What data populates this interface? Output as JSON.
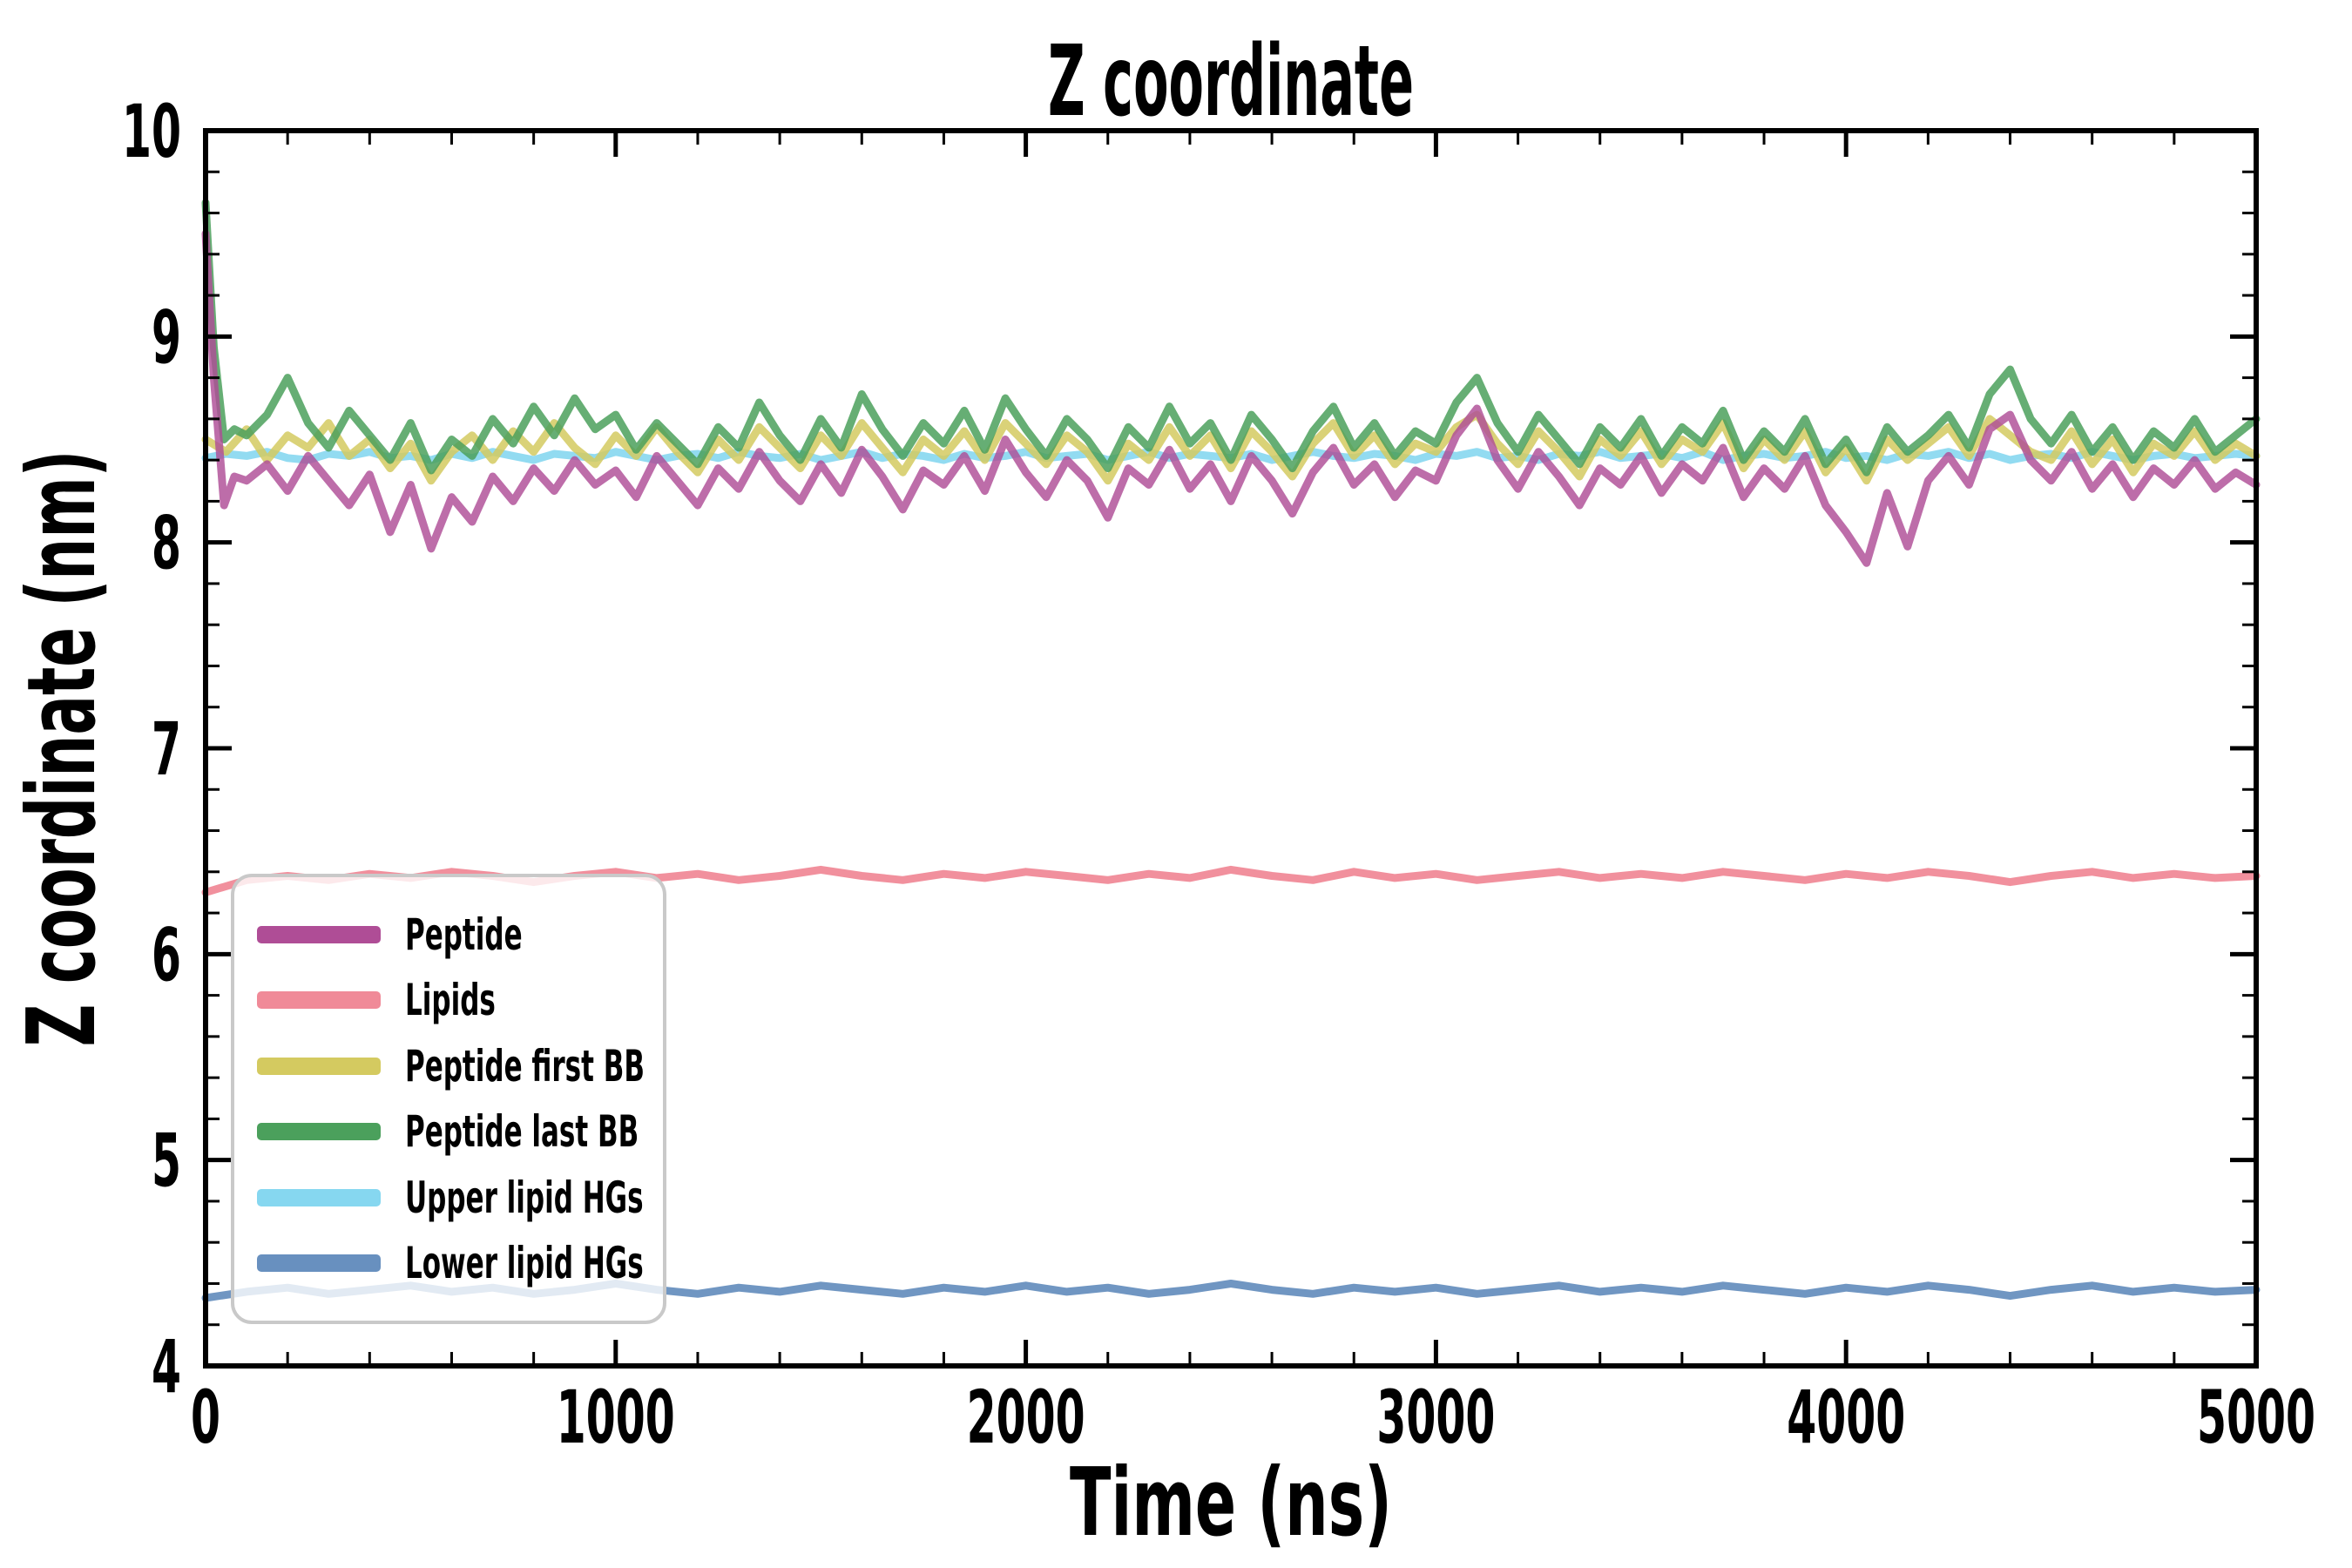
{
  "title": "Z coordinate",
  "legend": {
    "items": [
      {
        "label": "Peptide",
        "color": "#af4d96"
      },
      {
        "label": "Lipids",
        "color": "#f08a98"
      },
      {
        "label": "Peptide first BB",
        "color": "#d4ca60"
      },
      {
        "label": "Peptide last BB",
        "color": "#4ba05c"
      },
      {
        "label": "Upper lipid HGs",
        "color": "#86d7f0"
      },
      {
        "label": "Lower lipid HGs",
        "color": "#6890bf"
      }
    ]
  },
  "chart_data": {
    "type": "line",
    "title": "Z coordinate",
    "xlabel": "Time (ns)",
    "ylabel": "Z coordinate (nm)",
    "xlim": [
      0,
      5000
    ],
    "ylim": [
      4,
      10
    ],
    "grid": false,
    "legend_position": "lower left",
    "xticks_major": [
      0,
      1000,
      2000,
      3000,
      4000,
      5000
    ],
    "xtick_labels": [
      "0",
      "1000",
      "2000",
      "3000",
      "4000",
      "5000"
    ],
    "x_minor_step": 200,
    "yticks_major": [
      4,
      5,
      6,
      7,
      8,
      9,
      10
    ],
    "ytick_labels": [
      "4",
      "5",
      "6",
      "7",
      "8",
      "9",
      "10"
    ],
    "y_minor_step": 0.2,
    "draw_order": [
      4,
      2,
      3,
      0,
      1,
      5
    ],
    "series": [
      {
        "name": "Peptide",
        "color": "#af4d96",
        "opacity": 0.82,
        "linewidth": 9,
        "t_start": 100,
        "dt": 50,
        "lead": [
          [
            0,
            9.5
          ],
          [
            20,
            8.8
          ],
          [
            45,
            8.18
          ],
          [
            70,
            8.32
          ]
        ],
        "values": [
          8.3,
          8.38,
          8.25,
          8.42,
          8.3,
          8.18,
          8.33,
          8.05,
          8.28,
          7.97,
          8.22,
          8.1,
          8.32,
          8.2,
          8.36,
          8.25,
          8.4,
          8.28,
          8.35,
          8.22,
          8.42,
          8.3,
          8.18,
          8.36,
          8.26,
          8.44,
          8.3,
          8.2,
          8.38,
          8.24,
          8.45,
          8.32,
          8.16,
          8.35,
          8.28,
          8.42,
          8.25,
          8.5,
          8.34,
          8.22,
          8.4,
          8.3,
          8.12,
          8.36,
          8.28,
          8.45,
          8.26,
          8.38,
          8.2,
          8.42,
          8.3,
          8.14,
          8.34,
          8.46,
          8.28,
          8.38,
          8.22,
          8.35,
          8.3,
          8.52,
          8.65,
          8.4,
          8.26,
          8.44,
          8.32,
          8.18,
          8.36,
          8.28,
          8.42,
          8.24,
          8.38,
          8.3,
          8.46,
          8.22,
          8.36,
          8.26,
          8.42,
          8.18,
          8.05,
          7.9,
          8.24,
          7.98,
          8.3,
          8.42,
          8.28,
          8.55,
          8.62,
          8.4,
          8.3,
          8.44,
          8.26,
          8.38,
          8.22,
          8.36,
          8.28,
          8.4,
          8.26,
          8.34,
          8.28
        ]
      },
      {
        "name": "Lipids",
        "color": "#f08a98",
        "opacity": 0.95,
        "linewidth": 9,
        "t_start": 0,
        "dt": 100,
        "values": [
          6.3,
          6.36,
          6.38,
          6.36,
          6.39,
          6.37,
          6.4,
          6.38,
          6.35,
          6.38,
          6.4,
          6.37,
          6.39,
          6.36,
          6.38,
          6.41,
          6.38,
          6.36,
          6.39,
          6.37,
          6.4,
          6.38,
          6.36,
          6.39,
          6.37,
          6.41,
          6.38,
          6.36,
          6.4,
          6.37,
          6.39,
          6.36,
          6.38,
          6.4,
          6.37,
          6.39,
          6.37,
          6.4,
          6.38,
          6.36,
          6.39,
          6.37,
          6.4,
          6.38,
          6.35,
          6.38,
          6.4,
          6.37,
          6.39,
          6.37,
          6.38
        ]
      },
      {
        "name": "Peptide first BB",
        "color": "#d4ca60",
        "opacity": 0.85,
        "linewidth": 9,
        "t_start": 0,
        "dt": 50,
        "values": [
          8.5,
          8.44,
          8.55,
          8.4,
          8.52,
          8.46,
          8.58,
          8.42,
          8.5,
          8.36,
          8.48,
          8.3,
          8.44,
          8.52,
          8.4,
          8.54,
          8.44,
          8.58,
          8.46,
          8.38,
          8.52,
          8.42,
          8.56,
          8.44,
          8.34,
          8.5,
          8.4,
          8.56,
          8.46,
          8.36,
          8.52,
          8.42,
          8.58,
          8.46,
          8.34,
          8.5,
          8.42,
          8.54,
          8.4,
          8.58,
          8.48,
          8.38,
          8.52,
          8.44,
          8.3,
          8.48,
          8.4,
          8.56,
          8.42,
          8.52,
          8.36,
          8.54,
          8.44,
          8.32,
          8.48,
          8.58,
          8.42,
          8.52,
          8.38,
          8.48,
          8.44,
          8.56,
          8.62,
          8.48,
          8.38,
          8.54,
          8.44,
          8.32,
          8.5,
          8.42,
          8.54,
          8.38,
          8.5,
          8.44,
          8.58,
          8.36,
          8.5,
          8.4,
          8.54,
          8.34,
          8.46,
          8.3,
          8.5,
          8.4,
          8.48,
          8.56,
          8.42,
          8.6,
          8.52,
          8.44,
          8.4,
          8.54,
          8.38,
          8.5,
          8.34,
          8.48,
          8.42,
          8.54,
          8.4,
          8.48,
          8.42
        ]
      },
      {
        "name": "Peptide last BB",
        "color": "#4ba05c",
        "opacity": 0.85,
        "linewidth": 9,
        "t_start": 100,
        "dt": 50,
        "lead": [
          [
            0,
            9.65
          ],
          [
            20,
            8.95
          ],
          [
            45,
            8.5
          ],
          [
            70,
            8.55
          ]
        ],
        "values": [
          8.52,
          8.62,
          8.8,
          8.58,
          8.46,
          8.64,
          8.52,
          8.4,
          8.58,
          8.35,
          8.5,
          8.42,
          8.6,
          8.48,
          8.66,
          8.52,
          8.7,
          8.55,
          8.62,
          8.45,
          8.58,
          8.48,
          8.38,
          8.56,
          8.46,
          8.68,
          8.52,
          8.4,
          8.6,
          8.46,
          8.72,
          8.55,
          8.42,
          8.58,
          8.48,
          8.64,
          8.45,
          8.7,
          8.55,
          8.42,
          8.6,
          8.5,
          8.36,
          8.56,
          8.46,
          8.66,
          8.48,
          8.58,
          8.4,
          8.62,
          8.5,
          8.36,
          8.54,
          8.66,
          8.46,
          8.58,
          8.42,
          8.54,
          8.48,
          8.68,
          8.8,
          8.58,
          8.44,
          8.62,
          8.5,
          8.38,
          8.56,
          8.46,
          8.6,
          8.42,
          8.56,
          8.48,
          8.64,
          8.4,
          8.54,
          8.44,
          8.6,
          8.38,
          8.5,
          8.34,
          8.56,
          8.44,
          8.52,
          8.62,
          8.46,
          8.72,
          8.84,
          8.6,
          8.48,
          8.62,
          8.44,
          8.56,
          8.4,
          8.54,
          8.46,
          8.6,
          8.44,
          8.52,
          8.6
        ]
      },
      {
        "name": "Upper lipid HGs",
        "color": "#86d7f0",
        "opacity": 0.9,
        "linewidth": 9,
        "t_start": 0,
        "dt": 50,
        "values": [
          8.41,
          8.43,
          8.42,
          8.44,
          8.41,
          8.4,
          8.43,
          8.42,
          8.44,
          8.41,
          8.42,
          8.4,
          8.43,
          8.41,
          8.44,
          8.42,
          8.4,
          8.43,
          8.42,
          8.41,
          8.44,
          8.42,
          8.4,
          8.42,
          8.43,
          8.41,
          8.44,
          8.42,
          8.41,
          8.43,
          8.4,
          8.42,
          8.44,
          8.41,
          8.43,
          8.42,
          8.4,
          8.43,
          8.41,
          8.42,
          8.44,
          8.41,
          8.42,
          8.43,
          8.4,
          8.42,
          8.44,
          8.41,
          8.43,
          8.42,
          8.41,
          8.43,
          8.4,
          8.42,
          8.44,
          8.42,
          8.41,
          8.43,
          8.42,
          8.4,
          8.43,
          8.42,
          8.44,
          8.41,
          8.42,
          8.4,
          8.43,
          8.42,
          8.44,
          8.41,
          8.42,
          8.43,
          8.41,
          8.44,
          8.4,
          8.42,
          8.43,
          8.41,
          8.42,
          8.44,
          8.41,
          8.42,
          8.4,
          8.43,
          8.42,
          8.44,
          8.41,
          8.43,
          8.4,
          8.42,
          8.43,
          8.41,
          8.44,
          8.42,
          8.4,
          8.42,
          8.43,
          8.41,
          8.42,
          8.43,
          8.42
        ]
      },
      {
        "name": "Lower lipid HGs",
        "color": "#6890bf",
        "opacity": 0.95,
        "linewidth": 9,
        "t_start": 0,
        "dt": 100,
        "values": [
          4.33,
          4.36,
          4.38,
          4.35,
          4.37,
          4.39,
          4.36,
          4.38,
          4.35,
          4.37,
          4.4,
          4.37,
          4.35,
          4.38,
          4.36,
          4.39,
          4.37,
          4.35,
          4.38,
          4.36,
          4.39,
          4.36,
          4.38,
          4.35,
          4.37,
          4.4,
          4.37,
          4.35,
          4.38,
          4.36,
          4.38,
          4.35,
          4.37,
          4.39,
          4.36,
          4.38,
          4.36,
          4.39,
          4.37,
          4.35,
          4.38,
          4.36,
          4.39,
          4.37,
          4.34,
          4.37,
          4.39,
          4.36,
          4.38,
          4.36,
          4.37
        ]
      }
    ]
  }
}
